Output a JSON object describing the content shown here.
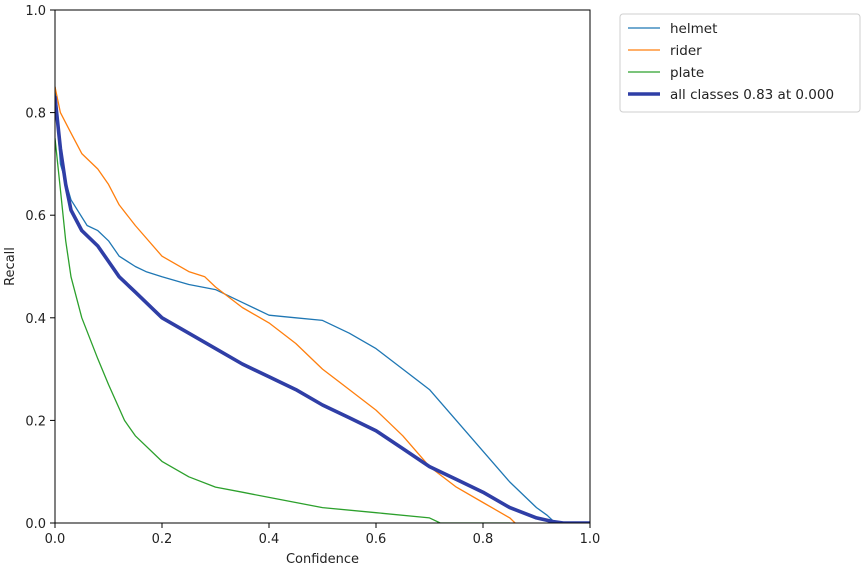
{
  "chart_data": {
    "type": "line",
    "title": "",
    "xlabel": "Confidence",
    "ylabel": "Recall",
    "xlim": [
      0.0,
      1.0
    ],
    "ylim": [
      0.0,
      1.0
    ],
    "xticks": [
      "0.0",
      "0.2",
      "0.4",
      "0.6",
      "0.8",
      "1.0"
    ],
    "yticks": [
      "0.0",
      "0.2",
      "0.4",
      "0.6",
      "0.8",
      "1.0"
    ],
    "grid": false,
    "legend_position": "outside-top-right",
    "series": [
      {
        "name": "helmet",
        "color": "#1f77b4",
        "x": [
          0.0,
          0.01,
          0.03,
          0.06,
          0.08,
          0.1,
          0.12,
          0.15,
          0.17,
          0.2,
          0.25,
          0.3,
          0.35,
          0.4,
          0.45,
          0.5,
          0.55,
          0.6,
          0.65,
          0.7,
          0.75,
          0.8,
          0.85,
          0.9,
          0.92,
          0.93,
          0.95,
          1.0
        ],
        "y": [
          0.85,
          0.7,
          0.63,
          0.58,
          0.57,
          0.55,
          0.52,
          0.5,
          0.49,
          0.48,
          0.465,
          0.455,
          0.43,
          0.405,
          0.4,
          0.395,
          0.37,
          0.34,
          0.3,
          0.26,
          0.2,
          0.14,
          0.08,
          0.03,
          0.015,
          0.005,
          0.0,
          0.0
        ]
      },
      {
        "name": "rider",
        "color": "#ff7f0e",
        "x": [
          0.0,
          0.01,
          0.03,
          0.05,
          0.08,
          0.1,
          0.12,
          0.15,
          0.2,
          0.25,
          0.28,
          0.3,
          0.35,
          0.4,
          0.45,
          0.5,
          0.55,
          0.6,
          0.65,
          0.7,
          0.75,
          0.8,
          0.85,
          0.86
        ],
        "y": [
          0.85,
          0.8,
          0.76,
          0.72,
          0.69,
          0.66,
          0.62,
          0.58,
          0.52,
          0.49,
          0.48,
          0.46,
          0.42,
          0.39,
          0.35,
          0.3,
          0.26,
          0.22,
          0.17,
          0.11,
          0.07,
          0.04,
          0.01,
          0.0
        ]
      },
      {
        "name": "plate",
        "color": "#2ca02c",
        "x": [
          0.0,
          0.01,
          0.02,
          0.03,
          0.05,
          0.08,
          0.1,
          0.13,
          0.15,
          0.2,
          0.25,
          0.3,
          0.35,
          0.4,
          0.5,
          0.6,
          0.7,
          0.72,
          0.8,
          0.85
        ],
        "y": [
          0.75,
          0.65,
          0.55,
          0.48,
          0.4,
          0.32,
          0.27,
          0.2,
          0.17,
          0.12,
          0.09,
          0.07,
          0.06,
          0.05,
          0.03,
          0.02,
          0.01,
          0.0,
          0.0,
          0.0
        ]
      },
      {
        "name": "all classes 0.83 at 0.000",
        "color": "#2f3ea6",
        "bold": true,
        "x": [
          0.0,
          0.01,
          0.02,
          0.03,
          0.05,
          0.08,
          0.1,
          0.12,
          0.15,
          0.2,
          0.25,
          0.3,
          0.35,
          0.4,
          0.45,
          0.5,
          0.55,
          0.6,
          0.65,
          0.7,
          0.75,
          0.8,
          0.85,
          0.9,
          0.93,
          0.95,
          1.0
        ],
        "y": [
          0.83,
          0.73,
          0.66,
          0.61,
          0.57,
          0.54,
          0.51,
          0.48,
          0.45,
          0.4,
          0.37,
          0.34,
          0.31,
          0.285,
          0.26,
          0.23,
          0.205,
          0.18,
          0.145,
          0.11,
          0.085,
          0.06,
          0.03,
          0.01,
          0.003,
          0.0,
          0.0
        ]
      }
    ]
  }
}
